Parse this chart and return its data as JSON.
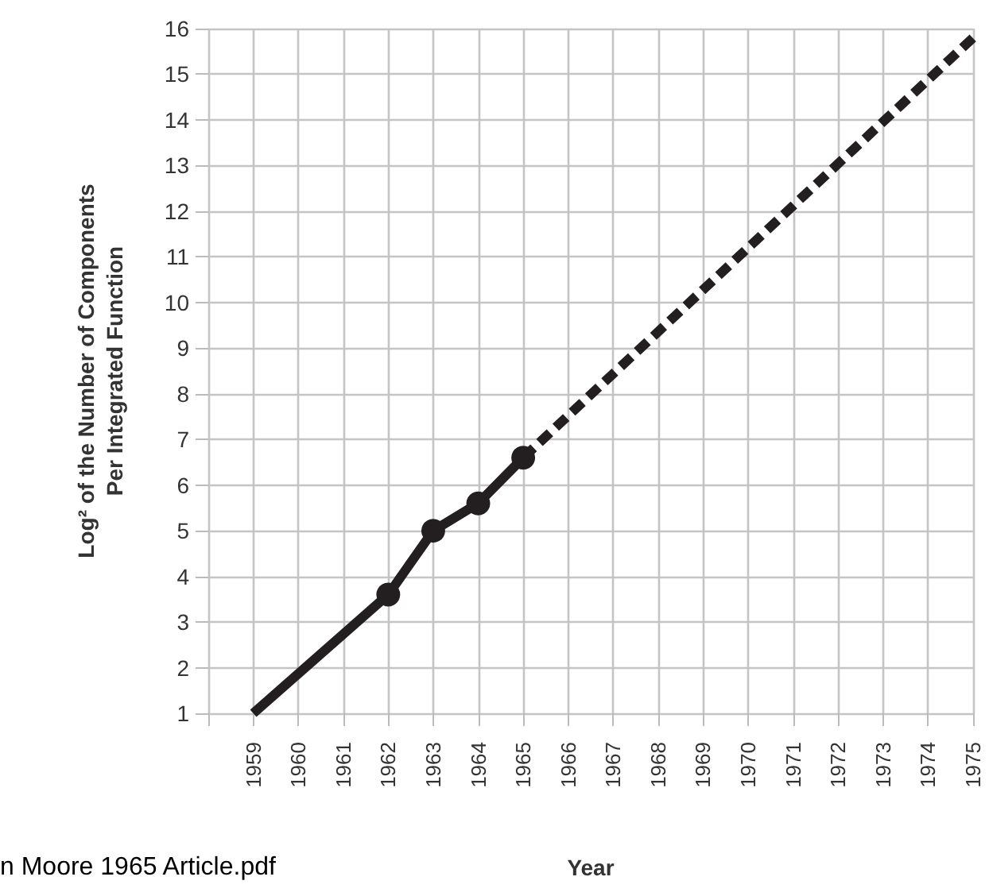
{
  "chart_data": {
    "type": "line",
    "xlabel": "Year",
    "ylabel": "Log² of the Number of Components\nPer Integrated Function",
    "xlim": [
      1958,
      1975
    ],
    "xticks": [
      {
        "value": 1958,
        "label": null
      },
      1959,
      1960,
      1961,
      1962,
      1963,
      1964,
      1965,
      1966,
      1967,
      1968,
      1969,
      1970,
      1971,
      1972,
      1973,
      1974,
      1975
    ],
    "ylim": [
      1,
      16
    ],
    "yticks": [
      1,
      2,
      3,
      4,
      5,
      6,
      7,
      8,
      9,
      10,
      11,
      12,
      13,
      14,
      15,
      16
    ],
    "grid": true,
    "series": [
      {
        "color": "#231f20",
        "x": [
          1959,
          1962
        ],
        "values": [
          1,
          3.6
        ],
        "line_style": "solid"
      },
      {
        "color": "#231f20",
        "x": [
          1962,
          1963,
          1964,
          1965
        ],
        "values": [
          3.6,
          5,
          5.6,
          6.6
        ],
        "marker": "circle",
        "line_style": "solid"
      },
      {
        "color": "#231f20",
        "x": [
          1965,
          1975
        ],
        "values": [
          6.6,
          15.8
        ],
        "line_style": "dashed"
      }
    ],
    "annotations": [
      "n Moore 1965 Article.pdf"
    ]
  }
}
